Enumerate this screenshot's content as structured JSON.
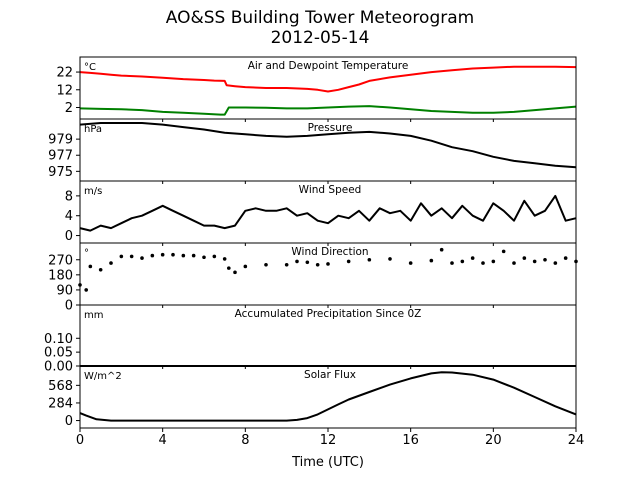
{
  "figure": {
    "title_line1": "AO&SS Building Tower Meteorogram",
    "title_line2": "2012-05-14",
    "xlabel": "Time (UTC)"
  },
  "chart_data": [
    {
      "type": "line",
      "title": "Air and Dewpoint Temperature",
      "unit": "°C",
      "yticks": [
        2,
        12,
        22
      ],
      "ylim": [
        -4.5,
        30.5
      ],
      "series": [
        {
          "color": "#ff0000",
          "x": [
            0,
            0.5,
            1,
            1.5,
            2,
            3,
            4,
            5,
            6,
            6.5,
            7,
            7.1,
            7.5,
            8,
            9,
            10,
            11,
            11.5,
            12,
            12.5,
            13,
            13.5,
            14,
            15,
            16,
            17,
            18,
            19,
            20,
            21,
            22,
            23,
            24
          ],
          "y": [
            22,
            21.5,
            21,
            20.5,
            20,
            19.5,
            18.8,
            18,
            17.5,
            17.2,
            17,
            14.5,
            14,
            13.5,
            13,
            13,
            12.5,
            12,
            11,
            12,
            13.5,
            15,
            17,
            19,
            20.5,
            22,
            23,
            24,
            24.5,
            25,
            25,
            25,
            24.8
          ]
        },
        {
          "color": "#008000",
          "x": [
            0,
            1,
            2,
            3,
            4,
            5,
            6,
            6.8,
            7,
            7.2,
            8,
            9,
            10,
            11,
            12,
            13,
            14,
            15,
            16,
            17,
            18,
            19,
            20,
            21,
            22,
            23,
            24
          ],
          "y": [
            1.5,
            1.2,
            1,
            0.5,
            -0.5,
            -1,
            -1.5,
            -2,
            -2,
            2,
            2,
            1.8,
            1.5,
            1.5,
            2,
            2.5,
            2.8,
            2,
            1,
            0,
            -0.5,
            -1,
            -1,
            -0.5,
            0.5,
            1.5,
            2.5
          ]
        }
      ]
    },
    {
      "type": "line",
      "title": "Pressure",
      "unit": "hPa",
      "yticks": [
        975,
        977,
        979
      ],
      "ylim": [
        973.8,
        981.5
      ],
      "series": [
        {
          "color": "#000000",
          "x": [
            0,
            1,
            2,
            3,
            4,
            5,
            6,
            7,
            8,
            9,
            10,
            11,
            12,
            13,
            14,
            15,
            16,
            17,
            18,
            19,
            20,
            21,
            22,
            23,
            24
          ],
          "y": [
            980.8,
            981,
            981,
            981,
            980.8,
            980.5,
            980.2,
            979.8,
            979.6,
            979.4,
            979.3,
            979.4,
            979.6,
            979.8,
            979.9,
            979.7,
            979.4,
            978.8,
            978,
            977.5,
            976.8,
            976.3,
            976,
            975.7,
            975.5
          ]
        }
      ]
    },
    {
      "type": "line",
      "title": "Wind Speed",
      "unit": "m/s",
      "yticks": [
        0,
        4,
        8
      ],
      "ylim": [
        -1.5,
        11
      ],
      "series": [
        {
          "color": "#000000",
          "x": [
            0,
            0.5,
            1,
            1.5,
            2,
            2.5,
            3,
            3.5,
            4,
            4.5,
            5,
            5.5,
            6,
            6.5,
            7,
            7.5,
            8,
            8.5,
            9,
            9.5,
            10,
            10.5,
            11,
            11.5,
            12,
            12.5,
            13,
            13.5,
            14,
            14.5,
            15,
            15.5,
            16,
            16.5,
            17,
            17.5,
            18,
            18.5,
            19,
            19.5,
            20,
            20.5,
            21,
            21.5,
            22,
            22.5,
            23,
            23.5,
            24
          ],
          "y": [
            1.5,
            1,
            2,
            1.5,
            2.5,
            3.5,
            4,
            5,
            6,
            5,
            4,
            3,
            2,
            2,
            1.5,
            2,
            5,
            5.5,
            5,
            5,
            5.5,
            4,
            4.5,
            3,
            2.5,
            4,
            3.5,
            5,
            3,
            5.5,
            4.5,
            5,
            3,
            6.5,
            4,
            5.5,
            3.5,
            6,
            4,
            3,
            6.5,
            5,
            3,
            7,
            4,
            5,
            8,
            3,
            3.5
          ]
        }
      ]
    },
    {
      "type": "scatter",
      "title": "Wind Direction",
      "unit": "°",
      "yticks": [
        0,
        90,
        180,
        270
      ],
      "ylim": [
        0,
        370
      ],
      "series": [
        {
          "color": "#000000",
          "x": [
            0,
            0.3,
            0.5,
            1,
            1.5,
            2,
            2.5,
            3,
            3.5,
            4,
            4.5,
            5,
            5.5,
            6,
            6.5,
            7,
            7.2,
            7.5,
            8,
            9,
            10,
            10.5,
            11,
            11.5,
            12,
            13,
            14,
            15,
            16,
            17,
            17.5,
            18,
            18.5,
            19,
            19.5,
            20,
            20.5,
            21,
            21.5,
            22,
            22.5,
            23,
            23.5,
            24
          ],
          "y": [
            120,
            90,
            230,
            210,
            250,
            290,
            290,
            280,
            295,
            300,
            300,
            295,
            295,
            285,
            290,
            275,
            220,
            195,
            230,
            240,
            240,
            260,
            255,
            240,
            245,
            260,
            270,
            275,
            250,
            265,
            330,
            250,
            260,
            280,
            250,
            260,
            320,
            250,
            280,
            260,
            270,
            250,
            280,
            260
          ]
        }
      ]
    },
    {
      "type": "line",
      "title": "Accumulated Precipitation Since 0Z",
      "unit": "mm",
      "yticks": [
        0.0,
        0.05,
        0.1
      ],
      "ytick_labels": [
        "0.00",
        "0.05",
        "0.10"
      ],
      "ylim": [
        0,
        0.22
      ],
      "series": [
        {
          "color": "#000000",
          "x": [
            0,
            24
          ],
          "y": [
            0,
            0
          ]
        }
      ]
    },
    {
      "type": "line",
      "title": "Solar Flux",
      "unit": "W/m^2",
      "yticks": [
        0,
        284,
        568
      ],
      "ylim": [
        -120,
        880
      ],
      "series": [
        {
          "color": "#000000",
          "x": [
            0,
            0.3,
            0.8,
            1.5,
            2,
            4,
            6,
            8,
            10,
            10.5,
            11,
            11.5,
            12,
            12.5,
            13,
            14,
            15,
            16,
            17,
            17.5,
            18,
            19,
            20,
            21,
            22,
            23,
            24
          ],
          "y": [
            120,
            80,
            20,
            0,
            0,
            0,
            0,
            0,
            0,
            10,
            40,
            100,
            180,
            260,
            340,
            460,
            580,
            680,
            760,
            780,
            775,
            740,
            660,
            530,
            380,
            230,
            100
          ]
        }
      ]
    }
  ],
  "x_axis": {
    "xlim": [
      0,
      24
    ],
    "ticks": [
      0,
      4,
      8,
      12,
      16,
      20,
      24
    ]
  }
}
